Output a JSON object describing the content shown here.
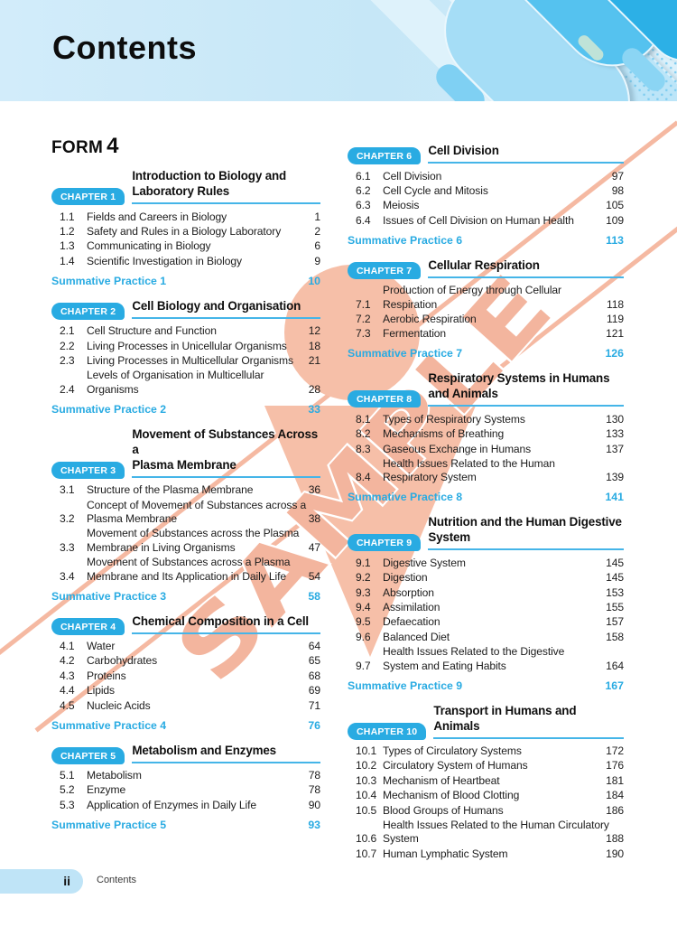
{
  "header": {
    "title": "Contents"
  },
  "form": {
    "label": "FORM",
    "number": "4"
  },
  "watermark": {
    "text": "SAMPLE"
  },
  "footer": {
    "page_number": "ii",
    "label": "Contents"
  },
  "colors": {
    "accent_blue": "#29abe2",
    "underline_blue": "#45b5e8",
    "header_bg": "#c9e8f8",
    "footer_pill": "#bfe4f7",
    "watermark_salmon": "#f6bfa8"
  },
  "columns": {
    "left": [
      {
        "badge": "CHAPTER 1",
        "title": "Introduction to Biology and\nLaboratory Rules",
        "items": [
          {
            "num": "1.1",
            "text": "Fields and Careers in Biology",
            "page": "1"
          },
          {
            "num": "1.2",
            "text": "Safety and Rules in a Biology Laboratory",
            "page": "2"
          },
          {
            "num": "1.3",
            "text": "Communicating in Biology",
            "page": "6"
          },
          {
            "num": "1.4",
            "text": "Scientific Investigation in Biology",
            "page": "9"
          }
        ],
        "summative": {
          "label": "Summative Practice 1",
          "page": "10"
        }
      },
      {
        "badge": "CHAPTER 2",
        "title": "Cell Biology and Organisation",
        "items": [
          {
            "num": "2.1",
            "text": "Cell Structure and Function",
            "page": "12"
          },
          {
            "num": "2.2",
            "text": "Living Processes in Unicellular Organisms",
            "page": "18"
          },
          {
            "num": "2.3",
            "text": "Living Processes in Multicellular Organisms",
            "page": "21"
          },
          {
            "num": "2.4",
            "text": "Levels of Organisation in Multicellular\nOrganisms",
            "page": "28"
          }
        ],
        "summative": {
          "label": "Summative Practice 2",
          "page": "33"
        }
      },
      {
        "badge": "CHAPTER 3",
        "title": "Movement of Substances Across a\nPlasma Membrane",
        "items": [
          {
            "num": "3.1",
            "text": "Structure of the Plasma Membrane",
            "page": "36"
          },
          {
            "num": "3.2",
            "text": "Concept of Movement of Substances across a\nPlasma Membrane",
            "page": "38"
          },
          {
            "num": "3.3",
            "text": "Movement of Substances across the Plasma\nMembrane in Living Organisms",
            "page": "47"
          },
          {
            "num": "3.4",
            "text": "Movement of Substances across a Plasma\nMembrane and Its Application in Daily Life",
            "page": "54"
          }
        ],
        "summative": {
          "label": "Summative Practice 3",
          "page": "58"
        }
      },
      {
        "badge": "CHAPTER 4",
        "title": "Chemical Composition in a Cell",
        "items": [
          {
            "num": "4.1",
            "text": "Water",
            "page": "64"
          },
          {
            "num": "4.2",
            "text": "Carbohydrates",
            "page": "65"
          },
          {
            "num": "4.3",
            "text": "Proteins",
            "page": "68"
          },
          {
            "num": "4.4",
            "text": "Lipids",
            "page": "69"
          },
          {
            "num": "4.5",
            "text": "Nucleic Acids",
            "page": "71"
          }
        ],
        "summative": {
          "label": "Summative Practice 4",
          "page": "76"
        }
      },
      {
        "badge": "CHAPTER 5",
        "title": "Metabolism and Enzymes",
        "items": [
          {
            "num": "5.1",
            "text": "Metabolism",
            "page": "78"
          },
          {
            "num": "5.2",
            "text": "Enzyme",
            "page": "78"
          },
          {
            "num": "5.3",
            "text": "Application of Enzymes in Daily Life",
            "page": "90"
          }
        ],
        "summative": {
          "label": "Summative Practice 5",
          "page": "93"
        }
      }
    ],
    "right": [
      {
        "badge": "CHAPTER 6",
        "title": "Cell Division",
        "items": [
          {
            "num": "6.1",
            "text": "Cell Division",
            "page": "97"
          },
          {
            "num": "6.2",
            "text": "Cell Cycle and Mitosis",
            "page": "98"
          },
          {
            "num": "6.3",
            "text": "Meiosis",
            "page": "105"
          },
          {
            "num": "6.4",
            "text": "Issues of Cell Division on Human Health",
            "page": "109"
          }
        ],
        "summative": {
          "label": "Summative Practice 6",
          "page": "113"
        }
      },
      {
        "badge": "CHAPTER 7",
        "title": "Cellular Respiration",
        "items": [
          {
            "num": "7.1",
            "text": "Production of Energy through Cellular\nRespiration",
            "page": "118"
          },
          {
            "num": "7.2",
            "text": "Aerobic Respiration",
            "page": "119"
          },
          {
            "num": "7.3",
            "text": "Fermentation",
            "page": "121"
          }
        ],
        "summative": {
          "label": "Summative Practice 7",
          "page": "126"
        }
      },
      {
        "badge": "CHAPTER 8",
        "title": "Respiratory Systems in Humans\nand Animals",
        "items": [
          {
            "num": "8.1",
            "text": "Types of Respiratory Systems",
            "page": "130"
          },
          {
            "num": "8.2",
            "text": "Mechanisms of Breathing",
            "page": "133"
          },
          {
            "num": "8.3",
            "text": "Gaseous Exchange in Humans",
            "page": "137"
          },
          {
            "num": "8.4",
            "text": "Health Issues Related to the Human\nRespiratory System",
            "page": "139"
          }
        ],
        "summative": {
          "label": "Summative Practice 8",
          "page": "141"
        }
      },
      {
        "badge": "CHAPTER 9",
        "title": "Nutrition and the Human Digestive\nSystem",
        "items": [
          {
            "num": "9.1",
            "text": "Digestive System",
            "page": "145"
          },
          {
            "num": "9.2",
            "text": "Digestion",
            "page": "145"
          },
          {
            "num": "9.3",
            "text": "Absorption",
            "page": "153"
          },
          {
            "num": "9.4",
            "text": "Assimilation",
            "page": "155"
          },
          {
            "num": "9.5",
            "text": "Defaecation",
            "page": "157"
          },
          {
            "num": "9.6",
            "text": "Balanced Diet",
            "page": "158"
          },
          {
            "num": "9.7",
            "text": "Health Issues Related to the Digestive\nSystem and Eating Habits",
            "page": "164"
          }
        ],
        "summative": {
          "label": "Summative Practice 9",
          "page": "167"
        }
      },
      {
        "badge": "CHAPTER 10",
        "title": "Transport in Humans and Animals",
        "items": [
          {
            "num": "10.1",
            "text": "Types of Circulatory Systems",
            "page": "172"
          },
          {
            "num": "10.2",
            "text": "Circulatory System of Humans",
            "page": "176"
          },
          {
            "num": "10.3",
            "text": "Mechanism of Heartbeat",
            "page": "181"
          },
          {
            "num": "10.4",
            "text": "Mechanism of Blood Clotting",
            "page": "184"
          },
          {
            "num": "10.5",
            "text": "Blood Groups of Humans",
            "page": "186"
          },
          {
            "num": "10.6",
            "text": "Health Issues Related to the Human Circulatory\nSystem",
            "page": "188"
          },
          {
            "num": "10.7",
            "text": "Human Lymphatic System",
            "page": "190"
          }
        ],
        "summative": null
      }
    ]
  }
}
